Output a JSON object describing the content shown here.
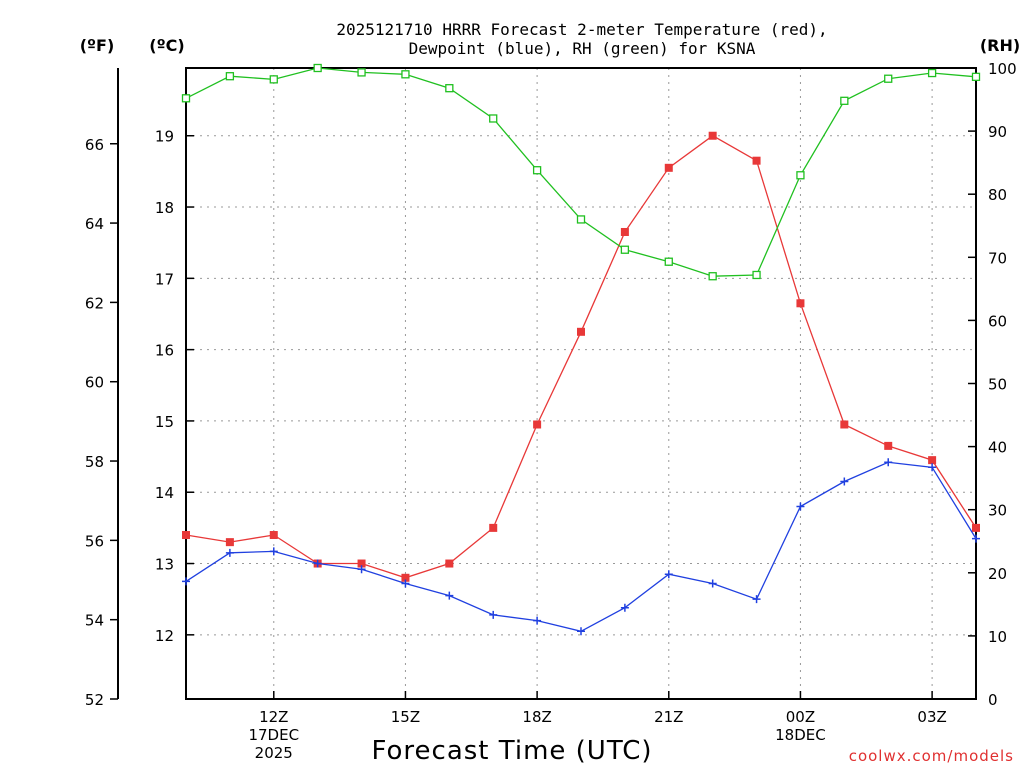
{
  "chart_data": {
    "type": "line",
    "title_line1": "2025121710 HRRR Forecast 2-meter Temperature (red),",
    "title_line2": "Dewpoint (blue), RH (green) for KSNA",
    "xlabel": "Forecast Time (UTC)",
    "credit": "coolwx.com/models",
    "credit_color": "#e03030",
    "units": {
      "fahrenheit": "(ºF)",
      "celsius": "(ºC)",
      "rh": "(RH)"
    },
    "x_hours": [
      10,
      11,
      12,
      13,
      14,
      15,
      16,
      17,
      18,
      19,
      20,
      21,
      22,
      23,
      24,
      25,
      26,
      27,
      28
    ],
    "xlim": [
      10,
      28
    ],
    "x_ticks": [
      {
        "hour": 12,
        "lines": [
          "12Z",
          "17DEC",
          "2025"
        ]
      },
      {
        "hour": 15,
        "lines": [
          "15Z"
        ]
      },
      {
        "hour": 18,
        "lines": [
          "18Z"
        ]
      },
      {
        "hour": 21,
        "lines": [
          "21Z"
        ]
      },
      {
        "hour": 24,
        "lines": [
          "00Z",
          "18DEC"
        ]
      },
      {
        "hour": 27,
        "lines": [
          "03Z"
        ]
      }
    ],
    "ylim_celsius": [
      11.1,
      19.95
    ],
    "y_ticks_celsius": [
      12,
      13,
      14,
      15,
      16,
      17,
      18,
      19
    ],
    "ylim_fahrenheit": [
      52,
      67.91
    ],
    "y_ticks_fahrenheit": [
      52,
      54,
      56,
      58,
      60,
      62,
      64,
      66
    ],
    "ylim_rh": [
      0,
      100
    ],
    "y_ticks_rh": [
      0,
      10,
      20,
      30,
      40,
      50,
      60,
      70,
      80,
      90,
      100
    ],
    "series": [
      {
        "name": "Temperature",
        "unit": "C",
        "color": "#e83838",
        "marker": "filled-square",
        "values": [
          13.4,
          13.3,
          13.4,
          13.0,
          13.0,
          12.8,
          13.0,
          13.5,
          14.95,
          16.25,
          17.65,
          18.55,
          19.0,
          18.65,
          16.65,
          14.95,
          14.65,
          14.45,
          13.5
        ]
      },
      {
        "name": "Dewpoint",
        "unit": "C",
        "color": "#2040e0",
        "marker": "plus",
        "values": [
          12.75,
          13.15,
          13.17,
          13.0,
          12.92,
          12.72,
          12.55,
          12.28,
          12.2,
          12.05,
          12.38,
          12.85,
          12.72,
          12.5,
          13.8,
          14.15,
          14.42,
          14.35,
          13.35
        ]
      },
      {
        "name": "RH",
        "unit": "%",
        "color": "#20c020",
        "marker": "open-square",
        "values": [
          95.2,
          98.7,
          98.2,
          100.0,
          99.3,
          99.0,
          96.8,
          92.0,
          83.8,
          76.0,
          71.2,
          69.3,
          67.0,
          67.2,
          83.0,
          94.8,
          98.3,
          99.2,
          98.6
        ]
      }
    ]
  }
}
